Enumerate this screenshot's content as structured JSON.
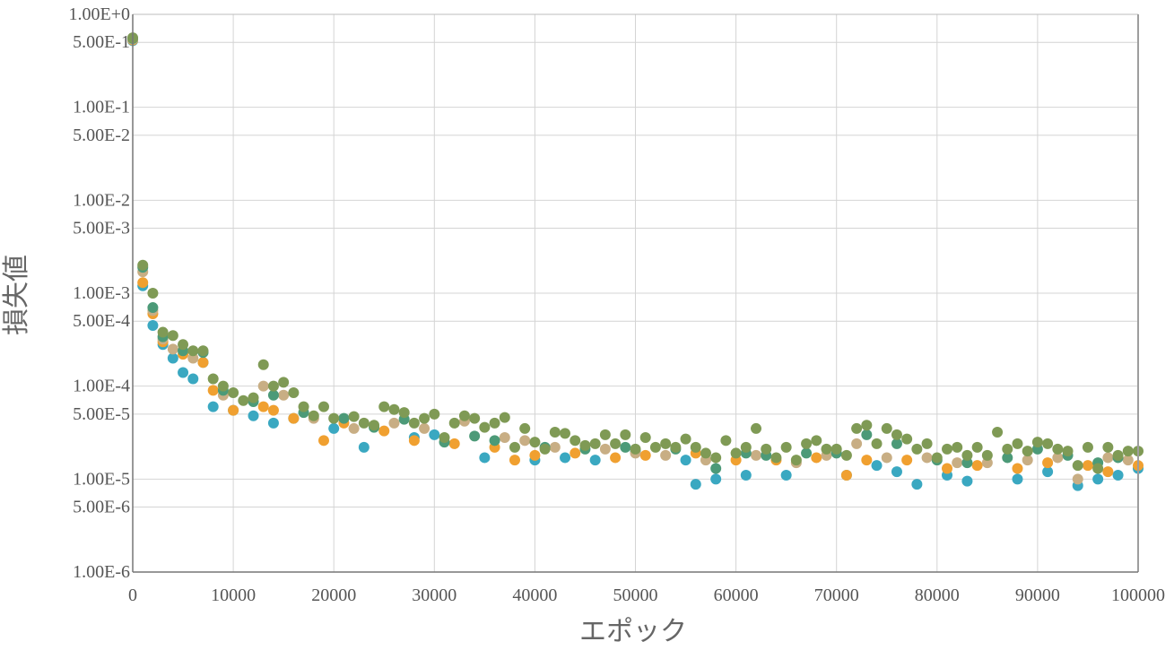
{
  "chart_data": {
    "type": "scatter",
    "title": "",
    "xlabel": "エポック",
    "ylabel": "損失値",
    "x_scale": "linear",
    "y_scale": "log",
    "xlim": [
      0,
      100000
    ],
    "ylim": [
      1e-06,
      1
    ],
    "grid": true,
    "legend": "none",
    "x_ticks": [
      0,
      10000,
      20000,
      30000,
      40000,
      50000,
      60000,
      70000,
      80000,
      90000,
      100000
    ],
    "x_tick_labels": [
      "0",
      "10000",
      "20000",
      "30000",
      "40000",
      "50000",
      "60000",
      "70000",
      "80000",
      "90000",
      "100000"
    ],
    "y_ticks": [
      1,
      0.5,
      0.1,
      0.05,
      0.01,
      0.005,
      0.001,
      0.0005,
      0.0001,
      5e-05,
      1e-05,
      5e-06,
      1e-06
    ],
    "y_tick_labels": [
      "1.00E+0",
      "5.00E-1",
      "1.00E-1",
      "5.00E-2",
      "1.00E-2",
      "5.00E-3",
      "1.00E-3",
      "5.00E-4",
      "1.00E-4",
      "5.00E-5",
      "1.00E-5",
      "5.00E-6",
      "1.00E-6"
    ],
    "series": [
      {
        "color": "#3aa8c1",
        "x": [
          0,
          1000,
          2000,
          3000,
          4000,
          5000,
          6000,
          7000,
          8000,
          10000,
          12000,
          14000,
          16000,
          20000,
          23000,
          28000,
          30000,
          35000,
          40000,
          43000,
          46000,
          50000,
          55000,
          56000,
          58000,
          61000,
          65000,
          71000,
          74000,
          76000,
          78000,
          81000,
          83000,
          88000,
          91000,
          94000,
          96000,
          98000,
          100000
        ],
        "y": [
          0.52,
          0.0012,
          0.00045,
          0.00028,
          0.0002,
          0.00014,
          0.00012,
          0.00018,
          6e-05,
          5.5e-05,
          4.8e-05,
          4e-05,
          4.5e-05,
          3.5e-05,
          2.2e-05,
          2.8e-05,
          3e-05,
          1.7e-05,
          1.6e-05,
          1.7e-05,
          1.6e-05,
          2e-05,
          1.6e-05,
          8.8e-06,
          1e-05,
          1.1e-05,
          1.1e-05,
          1.1e-05,
          1.4e-05,
          1.2e-05,
          8.8e-06,
          1.1e-05,
          9.5e-06,
          1e-05,
          1.2e-05,
          8.5e-06,
          1e-05,
          1.1e-05,
          1.3e-05
        ]
      },
      {
        "color": "#f0a030",
        "x": [
          0,
          1000,
          2000,
          3000,
          5000,
          7000,
          8000,
          10000,
          13000,
          14000,
          16000,
          19000,
          21000,
          25000,
          28000,
          32000,
          36000,
          38000,
          40000,
          44000,
          48000,
          51000,
          56000,
          60000,
          64000,
          68000,
          71000,
          73000,
          77000,
          81000,
          84000,
          88000,
          91000,
          95000,
          97000,
          100000
        ],
        "y": [
          0.53,
          0.0013,
          0.0006,
          0.0003,
          0.00022,
          0.00018,
          9e-05,
          5.5e-05,
          6e-05,
          5.5e-05,
          4.5e-05,
          2.6e-05,
          4e-05,
          3.3e-05,
          2.6e-05,
          2.4e-05,
          2.2e-05,
          1.6e-05,
          1.8e-05,
          1.9e-05,
          1.7e-05,
          1.8e-05,
          1.9e-05,
          1.6e-05,
          1.6e-05,
          1.7e-05,
          1.1e-05,
          1.6e-05,
          1.6e-05,
          1.3e-05,
          1.4e-05,
          1.3e-05,
          1.5e-05,
          1.4e-05,
          1.2e-05,
          1.4e-05
        ]
      },
      {
        "color": "#c8ae84",
        "x": [
          0,
          1000,
          2000,
          3000,
          4000,
          6000,
          9000,
          13000,
          15000,
          18000,
          22000,
          26000,
          29000,
          33000,
          37000,
          39000,
          42000,
          47000,
          50000,
          53000,
          57000,
          62000,
          66000,
          69000,
          72000,
          75000,
          79000,
          82000,
          85000,
          89000,
          92000,
          94000,
          97000,
          99000
        ],
        "y": [
          0.54,
          0.0017,
          0.00065,
          0.00032,
          0.00025,
          0.0002,
          8e-05,
          0.0001,
          8e-05,
          4.5e-05,
          3.5e-05,
          4e-05,
          3.5e-05,
          4.2e-05,
          2.8e-05,
          2.6e-05,
          2.2e-05,
          2.1e-05,
          1.9e-05,
          1.8e-05,
          1.6e-05,
          1.8e-05,
          1.5e-05,
          1.8e-05,
          2.4e-05,
          1.7e-05,
          1.7e-05,
          1.5e-05,
          1.5e-05,
          1.6e-05,
          1.7e-05,
          1e-05,
          1.7e-05,
          1.6e-05
        ]
      },
      {
        "color": "#4c9a78",
        "x": [
          0,
          1000,
          2000,
          3000,
          5000,
          7000,
          9000,
          12000,
          14000,
          17000,
          21000,
          24000,
          27000,
          31000,
          34000,
          36000,
          41000,
          45000,
          49000,
          54000,
          58000,
          61000,
          63000,
          67000,
          70000,
          73000,
          76000,
          80000,
          83000,
          87000,
          90000,
          93000,
          96000,
          98000
        ],
        "y": [
          0.55,
          0.0019,
          0.0007,
          0.00034,
          0.00024,
          0.00023,
          9e-05,
          6.8e-05,
          8e-05,
          5.2e-05,
          4.5e-05,
          3.6e-05,
          4.4e-05,
          2.5e-05,
          2.9e-05,
          2.6e-05,
          2.2e-05,
          2.1e-05,
          2.2e-05,
          2.1e-05,
          1.3e-05,
          1.9e-05,
          1.8e-05,
          1.9e-05,
          1.9e-05,
          3e-05,
          2.4e-05,
          1.6e-05,
          1.5e-05,
          1.7e-05,
          2.1e-05,
          1.8e-05,
          1.5e-05,
          1.7e-05
        ]
      },
      {
        "color": "#7f9a55",
        "x": [
          0,
          1000,
          2000,
          3000,
          4000,
          5000,
          6000,
          7000,
          8000,
          9000,
          10000,
          11000,
          12000,
          13000,
          14000,
          15000,
          16000,
          17000,
          18000,
          19000,
          20000,
          22000,
          23000,
          24000,
          25000,
          26000,
          27000,
          28000,
          29000,
          30000,
          31000,
          32000,
          33000,
          34000,
          35000,
          36000,
          37000,
          38000,
          39000,
          40000,
          41000,
          42000,
          43000,
          44000,
          45000,
          46000,
          47000,
          48000,
          49000,
          50000,
          51000,
          52000,
          53000,
          54000,
          55000,
          56000,
          57000,
          58000,
          59000,
          60000,
          61000,
          62000,
          63000,
          64000,
          65000,
          66000,
          67000,
          68000,
          69000,
          70000,
          71000,
          72000,
          73000,
          74000,
          75000,
          76000,
          77000,
          78000,
          79000,
          80000,
          81000,
          82000,
          83000,
          84000,
          85000,
          86000,
          87000,
          88000,
          89000,
          90000,
          91000,
          92000,
          93000,
          94000,
          95000,
          96000,
          97000,
          98000,
          99000,
          100000
        ],
        "y": [
          0.56,
          0.002,
          0.001,
          0.00038,
          0.00035,
          0.00028,
          0.00024,
          0.00024,
          0.00012,
          0.0001,
          8.5e-05,
          7e-05,
          7.5e-05,
          0.00017,
          0.0001,
          0.00011,
          8.5e-05,
          6e-05,
          4.8e-05,
          6e-05,
          4.5e-05,
          4.7e-05,
          4e-05,
          3.8e-05,
          6e-05,
          5.6e-05,
          5.2e-05,
          4e-05,
          4.5e-05,
          5e-05,
          2.8e-05,
          4e-05,
          4.8e-05,
          4.5e-05,
          3.6e-05,
          4e-05,
          4.6e-05,
          2.2e-05,
          3.5e-05,
          2.5e-05,
          2.1e-05,
          3.2e-05,
          3.1e-05,
          2.6e-05,
          2.3e-05,
          2.4e-05,
          3e-05,
          2.4e-05,
          3e-05,
          2.1e-05,
          2.8e-05,
          2.2e-05,
          2.4e-05,
          2.2e-05,
          2.7e-05,
          2.2e-05,
          1.9e-05,
          1.7e-05,
          2.6e-05,
          1.9e-05,
          2.2e-05,
          3.5e-05,
          2.1e-05,
          1.7e-05,
          2.2e-05,
          1.6e-05,
          2.4e-05,
          2.6e-05,
          2.1e-05,
          2.1e-05,
          1.8e-05,
          3.5e-05,
          3.8e-05,
          2.4e-05,
          3.5e-05,
          3e-05,
          2.7e-05,
          2.1e-05,
          2.4e-05,
          1.7e-05,
          2.1e-05,
          2.2e-05,
          1.8e-05,
          2.2e-05,
          1.8e-05,
          3.2e-05,
          2.1e-05,
          2.4e-05,
          2e-05,
          2.5e-05,
          2.4e-05,
          2.1e-05,
          2e-05,
          1.4e-05,
          2.2e-05,
          1.3e-05,
          2.2e-05,
          1.8e-05,
          2e-05,
          2e-05
        ]
      }
    ]
  }
}
